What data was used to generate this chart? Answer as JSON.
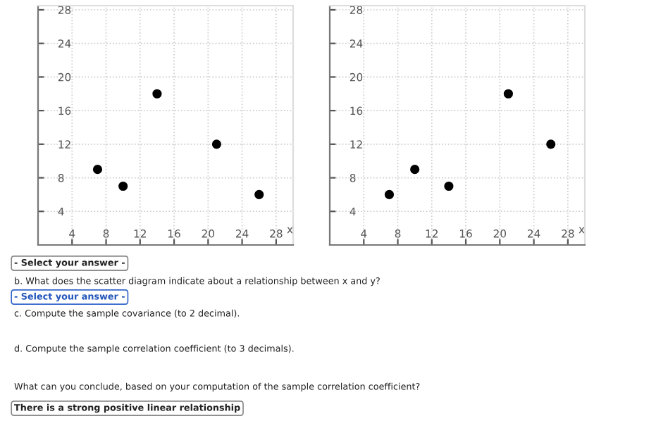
{
  "chart_data": [
    {
      "type": "scatter",
      "xlabel": "x",
      "x": [
        7,
        10,
        14,
        21,
        26
      ],
      "values": [
        9,
        7,
        18,
        12,
        6
      ],
      "color": "#000000",
      "marker": "circle",
      "xlim": [
        0,
        30
      ],
      "ylim": [
        0,
        28.5
      ],
      "xticks": [
        4,
        8,
        12,
        16,
        20,
        24,
        28
      ],
      "yticks": [
        4,
        8,
        12,
        16,
        20,
        24,
        28
      ],
      "grid": true,
      "annotations": [
        "- Select your answer -",
        "b. What does the scatter diagram indicate about a relationship between x and y?",
        "- Select your answer -",
        "c. Compute the sample covariance (to 2 decimal).",
        "d. Compute the sample correlation coefficient (to 3 decimals).",
        "What can you conclude, based on your computation of the sample correlation coefficient?",
        "There is a strong positive linear relationship"
      ]
    },
    {
      "type": "scatter",
      "xlabel": "x",
      "x": [
        7,
        10,
        14,
        21,
        26
      ],
      "values": [
        6,
        9,
        7,
        18,
        12
      ],
      "color": "#000000",
      "marker": "circle",
      "xlim": [
        0,
        30
      ],
      "ylim": [
        0,
        28.5
      ],
      "xticks": [
        4,
        8,
        12,
        16,
        20,
        24,
        28
      ],
      "yticks": [
        4,
        8,
        12,
        16,
        20,
        24,
        28
      ],
      "grid": true
    }
  ]
}
